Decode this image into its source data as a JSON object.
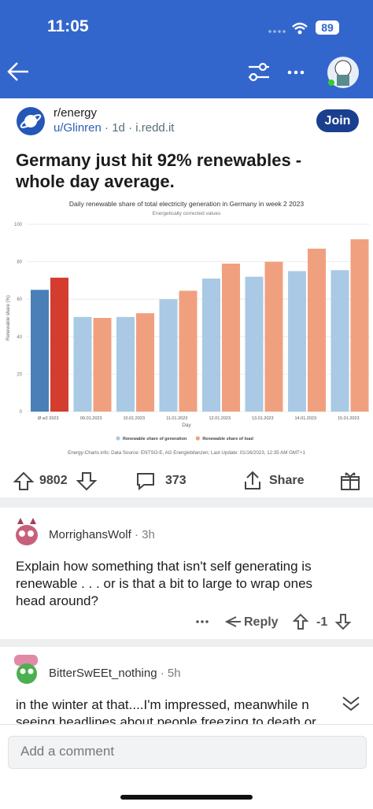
{
  "status_bar": {
    "time": "11:05",
    "battery": "89"
  },
  "post": {
    "subreddit": "r/energy",
    "author": "u/Glinren",
    "age": "1d",
    "domain": "i.redd.it",
    "join": "Join",
    "title_lines": [
      "Germany just hit 92% renewables -",
      "whole day average."
    ],
    "votes": 9802,
    "comments": 373,
    "share": "Share"
  },
  "chart_data": {
    "type": "bar",
    "title": "Daily renewable share of total electricity generation in Germany in week 2 2023",
    "subtitle": "Energetically corrected values",
    "x_label": "Day",
    "y_label": "Renewable share (%)",
    "source": "Energy-Charts.info; Data Source: ENTSO-E, AG Energiebilanzen; Last Update: 01/16/2023, 12:35 AM GMT+1",
    "categories": [
      "Ø w2 2023",
      "09.01.2023",
      "10.01.2023",
      "11.01.2023",
      "12.01.2023",
      "13.01.2023",
      "14.01.2023",
      "15.01.2023"
    ],
    "series": [
      {
        "name": "Renewable share of generation",
        "color": "#a9c9e4",
        "highlight_color": "#4a7fb8",
        "values": [
          65,
          50.5,
          50.5,
          60,
          71,
          72,
          75,
          75.5
        ]
      },
      {
        "name": "Renewable share of load",
        "color": "#f0a07f",
        "highlight_color": "#d33c2e",
        "values": [
          71.5,
          50,
          52.5,
          64.5,
          79,
          80,
          87,
          92
        ]
      }
    ],
    "ylim": [
      0,
      100
    ],
    "yticks": [
      0,
      20,
      40,
      60,
      80,
      100
    ],
    "grid": true
  },
  "comments": [
    {
      "author": "MorrighansWolf",
      "age": "3h",
      "text_lines": [
        "Explain how something that isn't self generating is",
        "renewable . . . or is that a bit to large to wrap ones",
        "head around?"
      ],
      "reply": "Reply",
      "votes": -1
    },
    {
      "author": "BitterSwEEt_nothing",
      "age": "5h",
      "text_lines": [
        "in the winter at that....I'm impressed, meanwhile n",
        "seeing headlines about people freezing to death or"
      ]
    }
  ],
  "composer": {
    "placeholder": "Add a comment"
  }
}
